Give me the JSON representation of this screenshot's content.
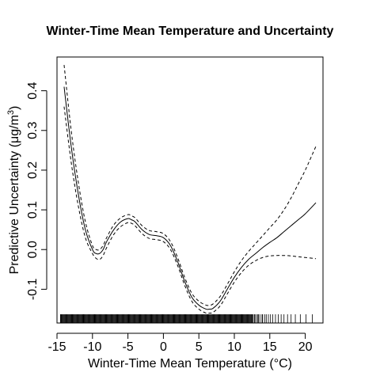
{
  "chart_data": {
    "type": "line",
    "title": "Winter-Time Mean Temperature and Uncertainty",
    "xlabel": "Winter-Time Mean Temperature (°C)",
    "ylabel_main": "Predictive Uncertainty (",
    "ylabel_mu": "μ",
    "ylabel_unit": "g/m",
    "ylabel_sup": "3",
    "ylabel_close": ")",
    "xlim": [
      -15,
      22.5
    ],
    "ylim": [
      -0.185,
      0.485
    ],
    "x_ticks": [
      -15,
      -10,
      -5,
      0,
      5,
      10,
      15,
      20
    ],
    "x_tick_labels": [
      "-15",
      "-10",
      "-5",
      "0",
      "5",
      "10",
      "15",
      "20"
    ],
    "y_ticks": [
      -0.1,
      0.0,
      0.1,
      0.2,
      0.3,
      0.4
    ],
    "y_tick_labels": [
      "-0.1",
      "0.0",
      "0.1",
      "0.2",
      "0.3",
      "0.4"
    ],
    "grid": false,
    "series": [
      {
        "style": "solid",
        "x": [
          -14.0,
          -13.0,
          -12.0,
          -11.0,
          -10.0,
          -9.5,
          -9.0,
          -8.5,
          -8.0,
          -7.0,
          -6.0,
          -5.0,
          -4.5,
          -4.0,
          -3.0,
          -2.0,
          -1.0,
          0.0,
          1.0,
          2.0,
          3.0,
          4.0,
          5.0,
          6.0,
          6.5,
          7.0,
          8.0,
          9.0,
          10.0,
          11.0,
          12.0,
          13.0,
          14.0,
          15.0,
          16.0,
          17.0,
          18.0,
          19.0,
          20.0,
          21.5
        ],
        "y": [
          0.41,
          0.26,
          0.14,
          0.05,
          0.0,
          -0.01,
          -0.01,
          0.0,
          0.02,
          0.05,
          0.07,
          0.078,
          0.075,
          0.07,
          0.05,
          0.038,
          0.035,
          0.03,
          0.01,
          -0.03,
          -0.08,
          -0.12,
          -0.14,
          -0.15,
          -0.15,
          -0.148,
          -0.13,
          -0.1,
          -0.07,
          -0.045,
          -0.025,
          -0.01,
          0.005,
          0.018,
          0.03,
          0.045,
          0.06,
          0.075,
          0.09,
          0.118
        ]
      },
      {
        "style": "dashed",
        "x": [
          -14.0,
          -13.0,
          -12.0,
          -11.0,
          -10.0,
          -9.5,
          -9.0,
          -8.5,
          -8.0,
          -7.0,
          -6.0,
          -5.0,
          -4.5,
          -4.0,
          -3.0,
          -2.0,
          -1.0,
          0.0,
          1.0,
          2.0,
          3.0,
          4.0,
          5.0,
          6.0,
          6.5,
          7.0,
          8.0,
          9.0,
          10.0,
          11.0,
          12.0,
          13.0,
          14.0,
          15.0,
          16.0,
          17.0,
          18.0,
          19.0,
          20.0,
          21.5
        ],
        "y": [
          0.465,
          0.3,
          0.17,
          0.07,
          0.01,
          0.0,
          0.0,
          0.01,
          0.03,
          0.062,
          0.08,
          0.088,
          0.085,
          0.08,
          0.06,
          0.048,
          0.045,
          0.04,
          0.02,
          -0.02,
          -0.07,
          -0.11,
          -0.13,
          -0.14,
          -0.14,
          -0.137,
          -0.118,
          -0.088,
          -0.056,
          -0.028,
          -0.005,
          0.015,
          0.035,
          0.055,
          0.075,
          0.1,
          0.13,
          0.165,
          0.2,
          0.26
        ]
      },
      {
        "style": "dashed",
        "x": [
          -14.0,
          -13.0,
          -12.0,
          -11.0,
          -10.0,
          -9.5,
          -9.0,
          -8.5,
          -8.0,
          -7.0,
          -6.0,
          -5.0,
          -4.5,
          -4.0,
          -3.0,
          -2.0,
          -1.0,
          0.0,
          1.0,
          2.0,
          3.0,
          4.0,
          5.0,
          6.0,
          6.5,
          7.0,
          8.0,
          9.0,
          10.0,
          11.0,
          12.0,
          13.0,
          14.0,
          15.0,
          16.0,
          17.0,
          18.0,
          19.0,
          20.0,
          21.5
        ],
        "y": [
          0.36,
          0.22,
          0.11,
          0.03,
          -0.01,
          -0.022,
          -0.025,
          -0.015,
          0.005,
          0.038,
          0.058,
          0.068,
          0.066,
          0.06,
          0.04,
          0.028,
          0.025,
          0.02,
          0.0,
          -0.04,
          -0.09,
          -0.13,
          -0.15,
          -0.16,
          -0.16,
          -0.158,
          -0.142,
          -0.112,
          -0.082,
          -0.058,
          -0.04,
          -0.028,
          -0.02,
          -0.016,
          -0.015,
          -0.015,
          -0.016,
          -0.018,
          -0.02,
          -0.023
        ]
      }
    ],
    "rug": {
      "dense_range": [
        -14.5,
        12.5
      ],
      "sparse_x": [
        12.6,
        12.8,
        12.9,
        13.1,
        13.3,
        13.4,
        13.6,
        13.9,
        14.0,
        14.3,
        14.5,
        14.8,
        15.1,
        15.4,
        15.8,
        16.2,
        16.6,
        17.0,
        17.5,
        18.0,
        18.6,
        19.3,
        20.1,
        21.0
      ]
    }
  }
}
